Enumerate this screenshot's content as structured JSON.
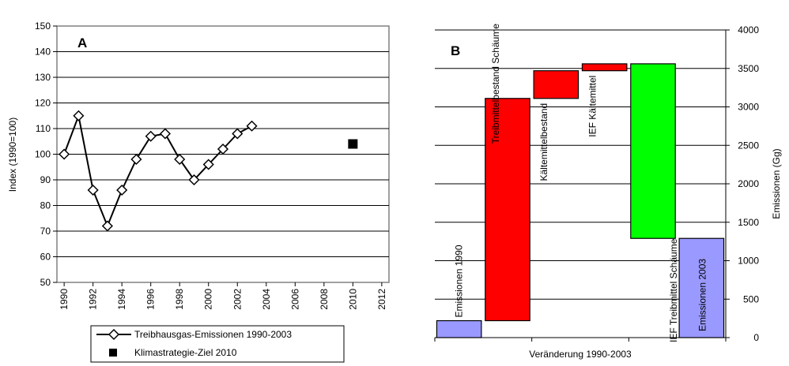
{
  "chart_data": [
    {
      "type": "line",
      "panel_label": "A",
      "ylabel": "Index (1990=100)",
      "ylim": [
        50,
        150
      ],
      "yticks": [
        50,
        60,
        70,
        80,
        90,
        100,
        110,
        120,
        130,
        140,
        150
      ],
      "xlim": [
        1989.5,
        2012.5
      ],
      "xticks": [
        "1990",
        "1992",
        "1994",
        "1996",
        "1998",
        "2000",
        "2002",
        "2004",
        "2006",
        "2008",
        "2010",
        "2012"
      ],
      "grid": "horizontal",
      "legend_position": "bottom",
      "series": [
        {
          "name": "Treibhausgas-Emissionen 1990-2003",
          "marker": "diamond",
          "color": "#000000",
          "x": [
            1990,
            1991,
            1992,
            1993,
            1994,
            1995,
            1996,
            1997,
            1998,
            1999,
            2000,
            2001,
            2002,
            2003
          ],
          "y": [
            100,
            115,
            86,
            72,
            86,
            98,
            107,
            108,
            98,
            90,
            96,
            102,
            108,
            111
          ]
        },
        {
          "name": "Klimastrategie-Ziel 2010",
          "marker": "square",
          "color": "#000000",
          "x": [
            2010
          ],
          "y": [
            104
          ]
        }
      ]
    },
    {
      "type": "bar",
      "subtype": "waterfall",
      "panel_label": "B",
      "xlabel": "Veränderung 1990-2003",
      "ylabel": "Emissionen (Gg)",
      "ylim": [
        0,
        4000
      ],
      "yticks": [
        0,
        500,
        1000,
        1500,
        2000,
        2500,
        3000,
        3500,
        4000
      ],
      "y_axis_side": "right",
      "grid": "horizontal",
      "bars": [
        {
          "label": "Emissionen 1990",
          "bottom": 0,
          "top": 220,
          "color": "#9999ff"
        },
        {
          "label": "Treibmittelbestand Schäume",
          "bottom": 220,
          "top": 3110,
          "color": "#ff0000"
        },
        {
          "label": "Kältemittelbestand",
          "bottom": 3110,
          "top": 3470,
          "color": "#ff0000"
        },
        {
          "label": "IEF Kältemittel",
          "bottom": 3470,
          "top": 3560,
          "color": "#ff0000"
        },
        {
          "label": "IEF Treibmittel Schäume",
          "bottom": 1290,
          "top": 3560,
          "color": "#00ff00"
        },
        {
          "label": "Emissionen 2003",
          "bottom": 0,
          "top": 1290,
          "color": "#9999ff"
        }
      ]
    }
  ]
}
